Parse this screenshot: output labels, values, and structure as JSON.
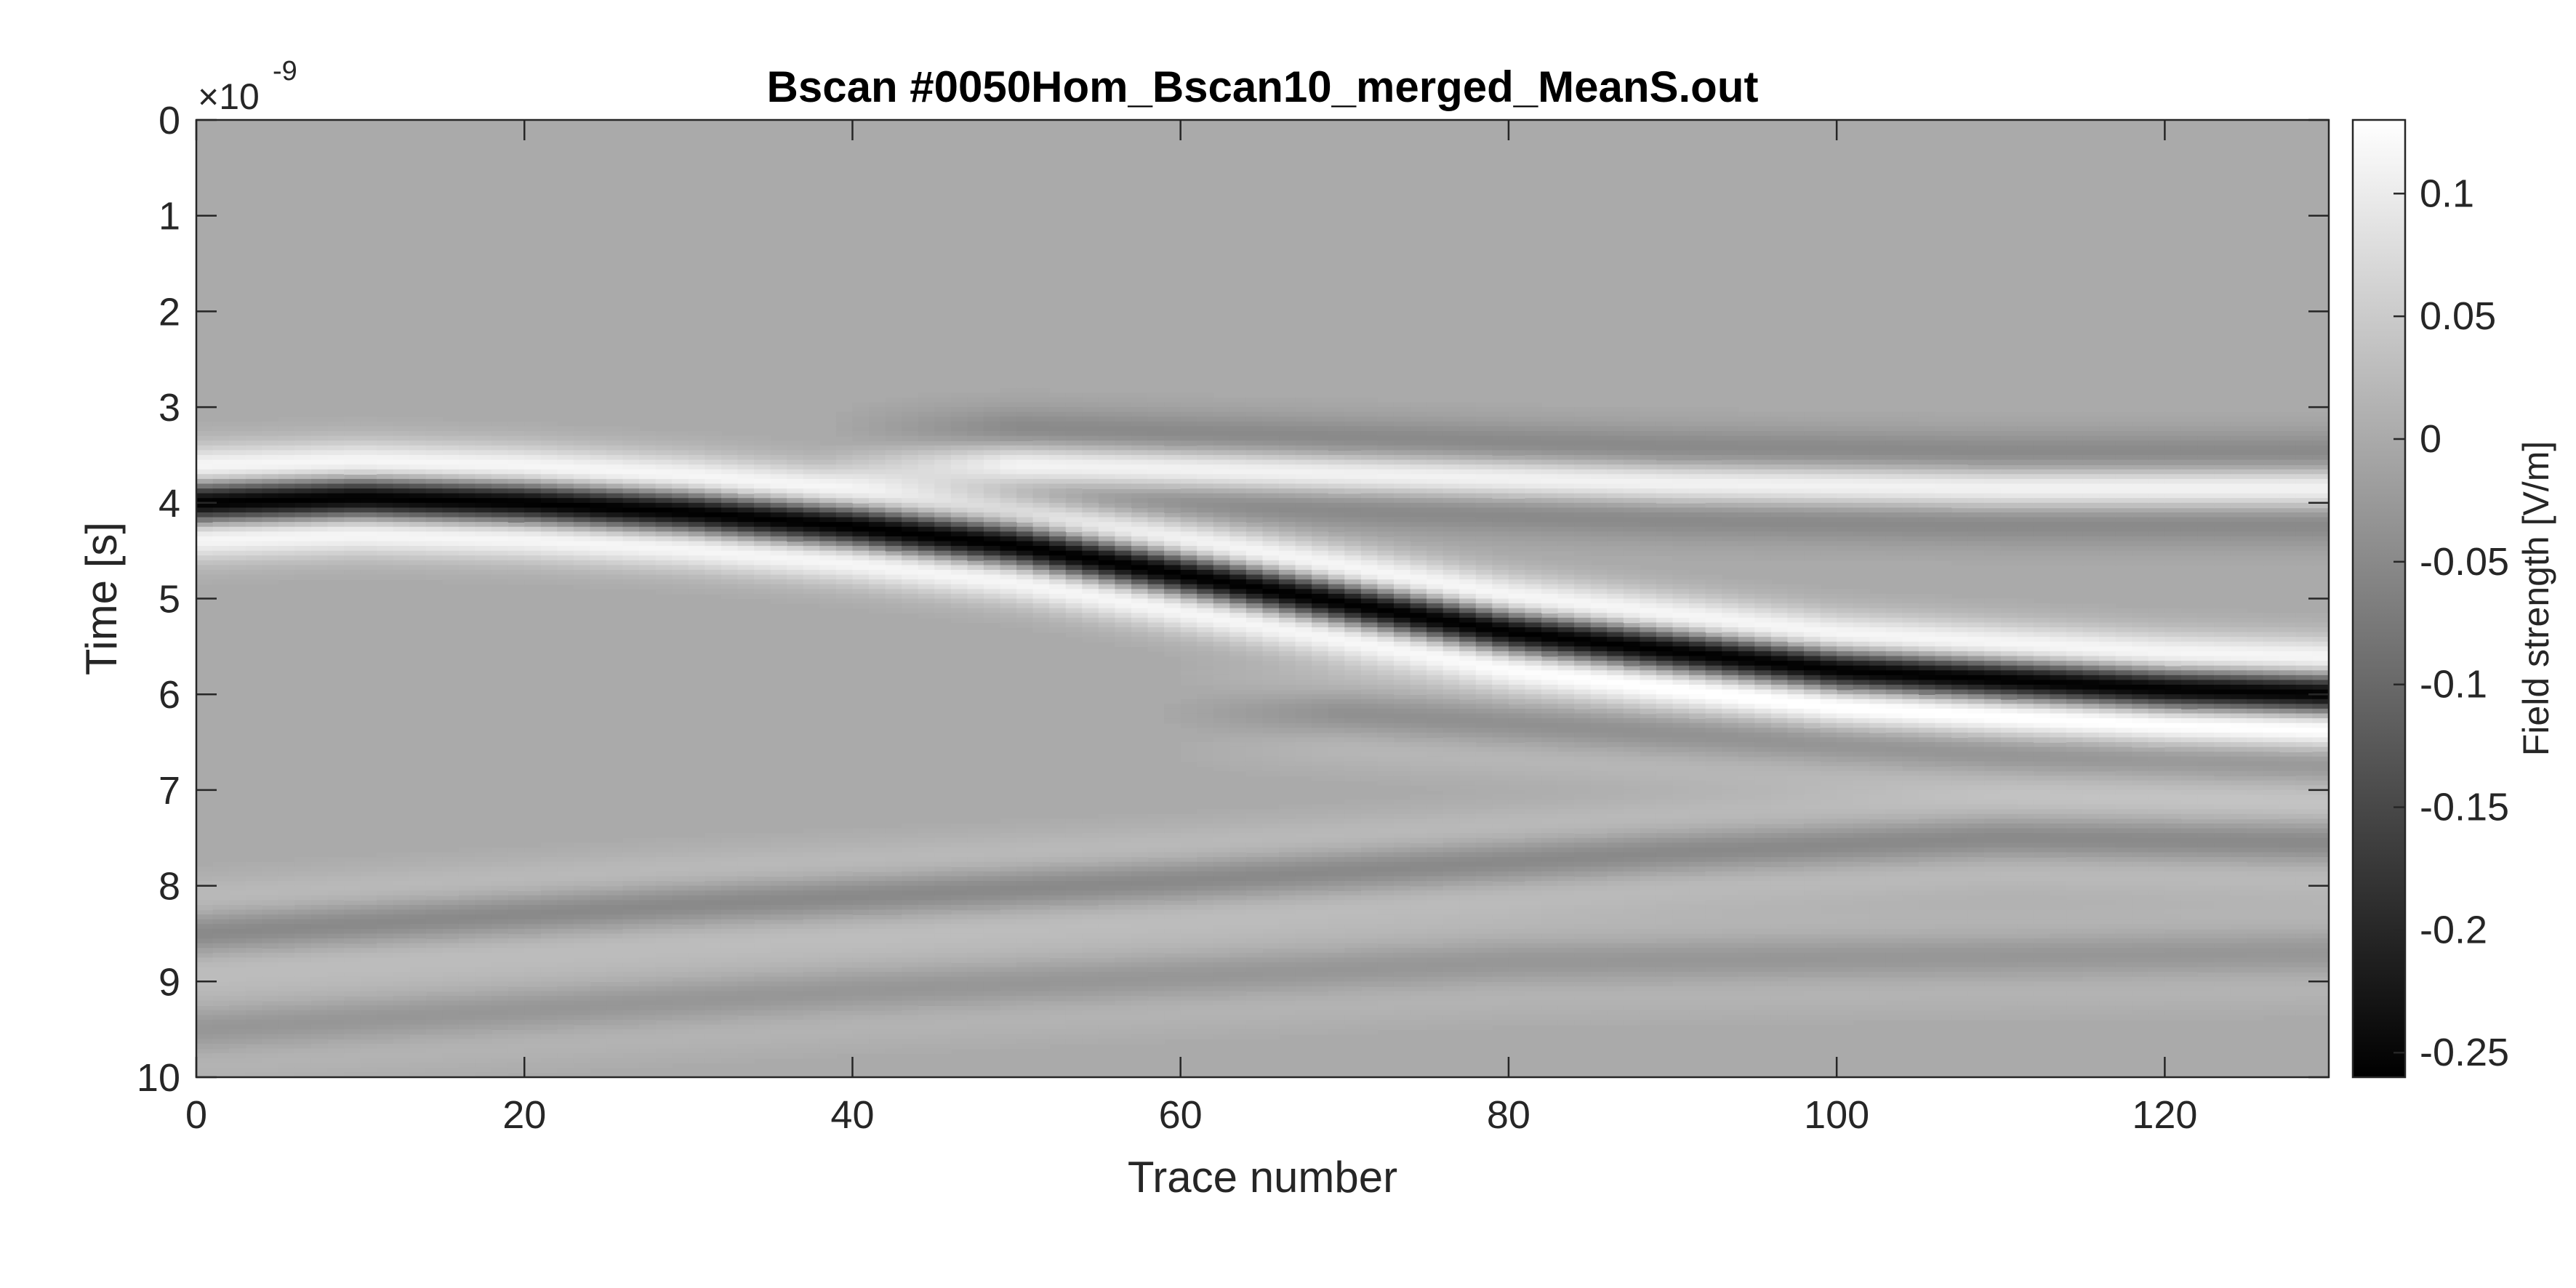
{
  "chart_data": {
    "type": "heatmap",
    "title": "Bscan #0050Hom_Bscan10_merged_MeanS.out",
    "xlabel": "Trace number",
    "ylabel": "Time [s]",
    "y_exponent_label": "×10",
    "y_exponent_power": "-9",
    "xlim": [
      0,
      130
    ],
    "ylim": [
      0,
      10
    ],
    "x_ticks": [
      0,
      20,
      40,
      60,
      80,
      100,
      120
    ],
    "x_tick_labels": [
      "0",
      "20",
      "40",
      "60",
      "80",
      "100",
      "120"
    ],
    "y_ticks": [
      0,
      1,
      2,
      3,
      4,
      5,
      6,
      7,
      8,
      9,
      10
    ],
    "y_tick_labels": [
      "0",
      "1",
      "2",
      "3",
      "4",
      "5",
      "6",
      "7",
      "8",
      "9",
      "10"
    ],
    "y_reversed": true,
    "colormap": "gray",
    "colorbar": {
      "label": "Field strength [V/m]",
      "range": [
        -0.26,
        0.13
      ],
      "ticks": [
        0.1,
        0.05,
        0,
        -0.05,
        -0.1,
        -0.15,
        -0.2,
        -0.25
      ],
      "tick_labels": [
        "0.1",
        "0.05",
        "0",
        "-0.05",
        "-0.1",
        "-0.15",
        "-0.2",
        "-0.25"
      ]
    },
    "reflections": [
      {
        "trace": [
          0,
          10,
          20,
          30,
          40,
          50,
          60,
          70,
          80,
          90,
          100,
          110,
          120,
          130
        ],
        "time": [
          4.0,
          3.95,
          4.0,
          4.1,
          4.25,
          4.45,
          4.75,
          5.05,
          5.35,
          5.55,
          5.75,
          5.85,
          5.95,
          6.0
        ],
        "amplitude": -0.26
      },
      {
        "trace": [
          50,
          70,
          90,
          110,
          130
        ],
        "time": [
          3.6,
          3.7,
          3.8,
          3.85,
          3.85
        ],
        "amplitude": 0.11
      },
      {
        "trace": [
          0,
          30,
          60,
          90,
          110,
          130
        ],
        "time": [
          8.5,
          8.2,
          7.95,
          7.65,
          7.5,
          7.55
        ],
        "amplitude": -0.05
      },
      {
        "trace": [
          0,
          40,
          80,
          130
        ],
        "time": [
          9.5,
          9.1,
          8.8,
          8.7
        ],
        "amplitude": -0.03
      },
      {
        "trace": [
          70,
          90,
          110,
          130
        ],
        "time": [
          6.2,
          6.4,
          6.6,
          6.7
        ],
        "amplitude": -0.04
      }
    ]
  }
}
